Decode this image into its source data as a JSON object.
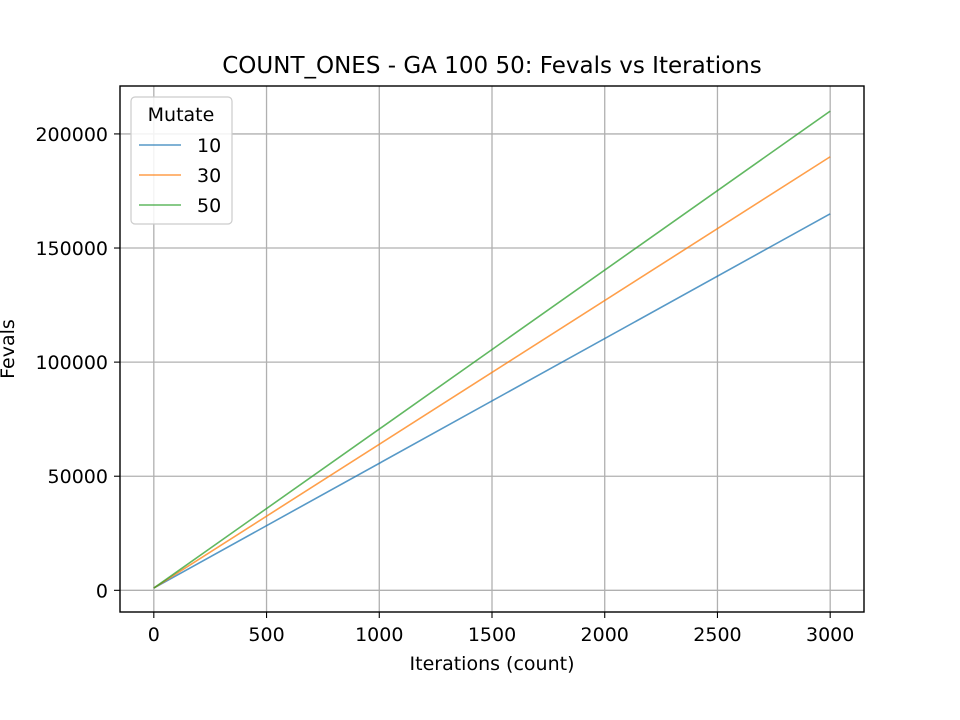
{
  "chart_data": {
    "type": "line",
    "title": "COUNT_ONES - GA 100 50: Fevals vs Iterations",
    "xlabel": "Iterations (count)",
    "ylabel": "Fevals",
    "xlim": [
      -150,
      3150
    ],
    "ylim": [
      -9500,
      221000
    ],
    "xticks": [
      0,
      500,
      1000,
      1500,
      2000,
      2500,
      3000
    ],
    "yticks": [
      0,
      50000,
      100000,
      150000,
      200000
    ],
    "grid": true,
    "legend": {
      "title": "Mutate",
      "placement": "top-left"
    },
    "series": [
      {
        "name": "10",
        "color": "#1f77b4",
        "x": [
          0,
          3000
        ],
        "y": [
          1000,
          165000
        ]
      },
      {
        "name": "30",
        "color": "#ff7f0e",
        "x": [
          0,
          3000
        ],
        "y": [
          1000,
          190000
        ]
      },
      {
        "name": "50",
        "color": "#2ca02c",
        "x": [
          0,
          3000
        ],
        "y": [
          1000,
          210000
        ]
      }
    ]
  }
}
